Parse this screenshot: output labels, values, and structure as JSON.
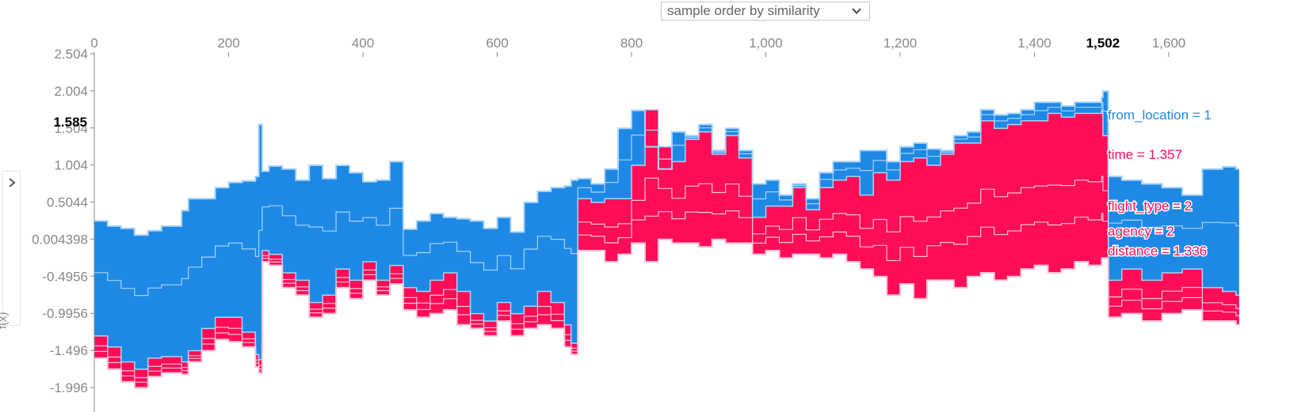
{
  "controls": {
    "order_select": {
      "value": "sample order by similarity",
      "icon": "chevron-down-icon"
    },
    "y_toggle": {
      "icon": "chevron-right-icon",
      "label": "f(x)"
    }
  },
  "chart_data": {
    "type": "area",
    "title": "",
    "xlabel": "",
    "ylabel": "f(x)",
    "xlim": [
      0,
      1700
    ],
    "ylim": [
      -1.996,
      2.504
    ],
    "x_ticks": [
      {
        "value": 0,
        "label": "0"
      },
      {
        "value": 200,
        "label": "200"
      },
      {
        "value": 400,
        "label": "400"
      },
      {
        "value": 600,
        "label": "600"
      },
      {
        "value": 800,
        "label": "800"
      },
      {
        "value": 1000,
        "label": "1,000"
      },
      {
        "value": 1200,
        "label": "1,200"
      },
      {
        "value": 1400,
        "label": "1,400"
      },
      {
        "value": 1600,
        "label": "1,600"
      }
    ],
    "y_ticks": [
      {
        "value": 2.504,
        "label": "2.504"
      },
      {
        "value": 2.004,
        "label": "2.004"
      },
      {
        "value": 1.504,
        "label": "1.504"
      },
      {
        "value": 1.004,
        "label": "1.004"
      },
      {
        "value": 0.5044,
        "label": "0.5044"
      },
      {
        "value": 0.004398,
        "label": "0.004398"
      },
      {
        "value": -0.4956,
        "label": "-0.4956"
      },
      {
        "value": -0.9956,
        "label": "-0.9956"
      },
      {
        "value": -1.496,
        "label": "-1.496"
      },
      {
        "value": -1.996,
        "label": "-1.996"
      }
    ],
    "highlight": {
      "x": 1502,
      "x_label": "1,502",
      "fx": 1.585,
      "fx_label": "1.585"
    },
    "colors": {
      "positive": "#ff0d57",
      "negative": "#1e88e5",
      "positive_line": "#ffc3d5",
      "negative_line": "#a9d4f7",
      "axis": "#888888"
    },
    "feature_labels": [
      {
        "text": "from_location = 1",
        "effect": "negative"
      },
      {
        "text": "time = 1.357",
        "effect": "positive"
      },
      {
        "text": "flight_type = 2",
        "effect": "positive"
      },
      {
        "text": "agency = 2",
        "effect": "positive"
      },
      {
        "text": "distance = 1.336",
        "effect": "positive"
      }
    ],
    "stack_x": [
      0,
      20,
      40,
      60,
      80,
      100,
      130,
      140,
      160,
      180,
      200,
      220,
      240,
      245,
      250,
      260,
      280,
      300,
      320,
      340,
      360,
      380,
      400,
      420,
      440,
      460,
      480,
      500,
      520,
      540,
      560,
      580,
      600,
      620,
      640,
      660,
      680,
      700,
      710,
      720,
      740,
      760,
      780,
      800,
      820,
      840,
      860,
      880,
      900,
      920,
      940,
      960,
      980,
      1000,
      1020,
      1040,
      1060,
      1080,
      1100,
      1120,
      1140,
      1160,
      1180,
      1200,
      1220,
      1240,
      1260,
      1280,
      1300,
      1320,
      1340,
      1360,
      1380,
      1400,
      1420,
      1440,
      1460,
      1480,
      1500,
      1502,
      1510,
      1530,
      1560,
      1590,
      1620,
      1650,
      1680,
      1700
    ],
    "stack_top": [
      0.25,
      0.18,
      0.15,
      0.06,
      0.12,
      0.18,
      0.39,
      0.55,
      0.55,
      0.7,
      0.77,
      0.79,
      0.85,
      1.55,
      0.92,
      0.99,
      0.95,
      0.8,
      1.0,
      0.82,
      1.0,
      0.9,
      0.78,
      0.8,
      1.05,
      0.14,
      0.25,
      0.35,
      0.3,
      0.28,
      0.25,
      0.15,
      0.3,
      0.1,
      0.5,
      0.65,
      0.7,
      0.72,
      0.8,
      0.82,
      0.75,
      0.95,
      1.5,
      1.74,
      1.25,
      0.95,
      1.45,
      1.4,
      1.55,
      1.2,
      1.5,
      1.2,
      0.75,
      0.8,
      0.6,
      0.75,
      0.55,
      0.9,
      1.05,
      1.05,
      1.2,
      1.2,
      1.05,
      1.25,
      1.3,
      1.22,
      1.2,
      1.4,
      1.45,
      1.75,
      1.68,
      1.7,
      1.75,
      1.85,
      1.85,
      1.8,
      1.85,
      1.85,
      1.92,
      2.0,
      0.85,
      0.8,
      0.75,
      0.7,
      0.6,
      0.95,
      0.98,
      0.95
    ],
    "stack_split": [
      -1.3,
      -1.45,
      -1.65,
      -1.75,
      -1.6,
      -1.58,
      -1.65,
      -1.5,
      -1.2,
      -1.05,
      -1.05,
      -1.25,
      -1.55,
      -1.62,
      -0.15,
      -0.2,
      -0.45,
      -0.55,
      -0.85,
      -0.75,
      -0.4,
      -0.55,
      -0.3,
      -0.55,
      -0.35,
      -0.65,
      -0.7,
      -0.55,
      -0.45,
      -0.7,
      -1.0,
      -1.1,
      -0.85,
      -1.0,
      -0.9,
      -0.7,
      -0.85,
      -1.15,
      -1.4,
      0.55,
      0.5,
      0.55,
      0.55,
      1.0,
      1.75,
      1.25,
      1.05,
      1.35,
      1.45,
      1.15,
      1.4,
      1.1,
      0.3,
      0.45,
      0.45,
      0.7,
      0.4,
      0.7,
      0.8,
      0.85,
      0.6,
      0.9,
      0.8,
      1.05,
      1.1,
      1.0,
      1.15,
      1.3,
      1.3,
      1.6,
      1.5,
      1.55,
      1.6,
      1.6,
      1.7,
      1.65,
      1.7,
      1.7,
      1.75,
      1.4,
      -0.55,
      -0.4,
      -0.55,
      -0.45,
      -0.4,
      -0.65,
      -0.7,
      -0.75
    ],
    "stack_bottom": [
      -1.6,
      -1.75,
      -1.92,
      -2.0,
      -1.85,
      -1.8,
      -1.82,
      -1.65,
      -1.5,
      -1.35,
      -1.38,
      -1.45,
      -1.72,
      -1.8,
      -0.3,
      -0.35,
      -0.65,
      -0.75,
      -1.05,
      -1.0,
      -0.65,
      -0.8,
      -0.55,
      -0.75,
      -0.6,
      -0.95,
      -1.05,
      -1.0,
      -0.95,
      -1.15,
      -1.2,
      -1.3,
      -1.1,
      -1.3,
      -1.2,
      -1.15,
      -1.2,
      -1.45,
      -1.55,
      -0.15,
      -0.15,
      -0.3,
      -0.2,
      -0.05,
      -0.3,
      0.0,
      -0.05,
      -0.05,
      -0.1,
      0.0,
      -0.05,
      -0.05,
      -0.2,
      -0.15,
      -0.25,
      -0.2,
      -0.2,
      -0.25,
      -0.2,
      -0.3,
      -0.4,
      -0.5,
      -0.75,
      -0.6,
      -0.8,
      -0.55,
      -0.55,
      -0.65,
      -0.5,
      -0.45,
      -0.55,
      -0.5,
      -0.4,
      -0.35,
      -0.45,
      -0.4,
      -0.3,
      -0.35,
      -0.25,
      -0.25,
      -1.05,
      -1.0,
      -1.1,
      -1.0,
      -0.95,
      -1.1,
      -1.1,
      -1.15
    ]
  }
}
